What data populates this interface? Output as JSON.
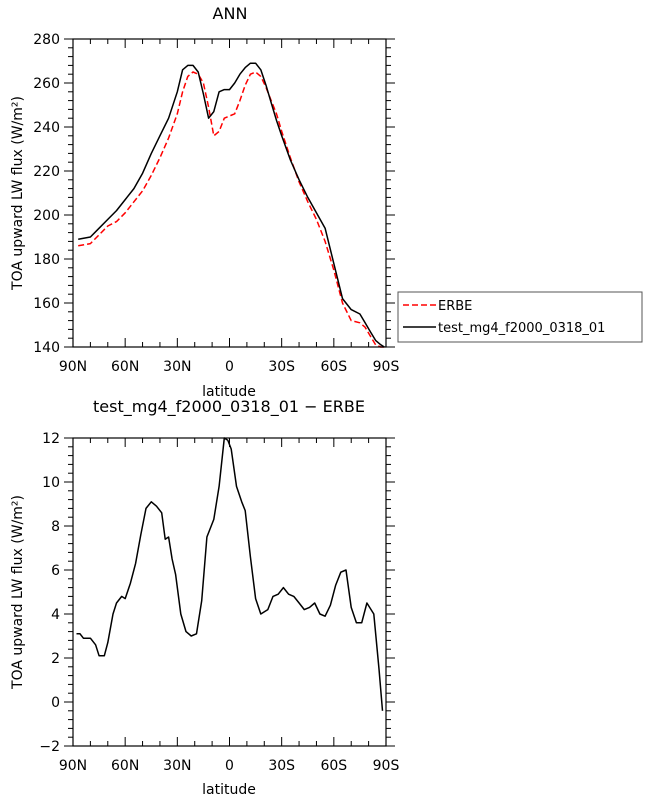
{
  "chart_data": [
    {
      "type": "line",
      "title": "ANN",
      "xlabel": "latitude",
      "ylabel": "TOA upward LW flux (W/m²)",
      "xlim": [
        90,
        -90
      ],
      "ylim": [
        140,
        280
      ],
      "x_ticks": [
        90,
        60,
        30,
        0,
        -30,
        -60,
        -90
      ],
      "x_tick_labels": [
        "90N",
        "60N",
        "30N",
        "0",
        "30S",
        "60S",
        "90S"
      ],
      "y_ticks": [
        140,
        160,
        180,
        200,
        220,
        240,
        260,
        280
      ],
      "y_tick_labels": [
        "140",
        "160",
        "180",
        "200",
        "220",
        "240",
        "260",
        "280"
      ],
      "legend": {
        "placement": "outside-right",
        "entries": [
          "ERBE",
          "test_mg4_f2000_0318_01"
        ]
      },
      "series": [
        {
          "name": "ERBE",
          "color": "#ff0000",
          "style": "dashed",
          "x": [
            87,
            80,
            75,
            70,
            65,
            60,
            55,
            50,
            45,
            40,
            35,
            30,
            27,
            24,
            21,
            18,
            15,
            12,
            9,
            6,
            3,
            0,
            -3,
            -6,
            -9,
            -12,
            -15,
            -18,
            -21,
            -24,
            -27,
            -30,
            -35,
            -40,
            -45,
            -50,
            -55,
            -60,
            -65,
            -70,
            -75,
            -78,
            -81,
            -84,
            -87,
            -89
          ],
          "y": [
            186,
            187,
            191,
            195,
            197,
            201,
            206,
            211,
            218,
            226,
            235,
            246,
            256,
            263,
            265,
            264,
            260,
            249,
            236,
            238,
            244,
            245,
            246,
            252,
            259,
            264,
            265,
            263,
            258,
            252,
            246,
            238,
            226,
            215,
            206,
            198,
            188,
            175,
            160,
            152,
            151,
            149,
            145,
            141,
            140,
            140
          ]
        },
        {
          "name": "test_mg4_f2000_0318_01",
          "color": "#000000",
          "style": "solid",
          "x": [
            87,
            80,
            75,
            70,
            65,
            60,
            55,
            50,
            45,
            40,
            35,
            30,
            27,
            24,
            21,
            18,
            15,
            12,
            9,
            6,
            3,
            0,
            -3,
            -6,
            -9,
            -12,
            -15,
            -18,
            -21,
            -24,
            -27,
            -30,
            -35,
            -40,
            -45,
            -50,
            -55,
            -60,
            -65,
            -70,
            -75,
            -78,
            -81,
            -84,
            -87,
            -89
          ],
          "y": [
            189,
            190,
            194,
            198,
            202,
            207,
            212,
            219,
            228,
            236,
            244,
            256,
            266,
            268,
            268,
            265,
            255,
            244,
            247,
            256,
            257,
            257,
            260,
            264,
            267,
            269,
            269,
            266,
            259,
            251,
            243,
            236,
            225,
            216,
            208,
            201,
            194,
            178,
            162,
            157,
            155,
            151,
            147,
            143,
            141,
            140
          ]
        }
      ]
    },
    {
      "type": "line",
      "title": "test_mg4_f2000_0318_01 − ERBE",
      "xlabel": "latitude",
      "ylabel": "TOA upward LW flux (W/m²)",
      "xlim": [
        90,
        -90
      ],
      "ylim": [
        -2,
        12
      ],
      "x_ticks": [
        90,
        60,
        30,
        0,
        -30,
        -60,
        -90
      ],
      "x_tick_labels": [
        "90N",
        "60N",
        "30N",
        "0",
        "30S",
        "60S",
        "90S"
      ],
      "y_ticks": [
        -2,
        0,
        2,
        4,
        6,
        8,
        10,
        12
      ],
      "y_tick_labels": [
        "−2",
        "0",
        "2",
        "4",
        "6",
        "8",
        "10",
        "12"
      ],
      "series": [
        {
          "color": "#000000",
          "style": "solid",
          "x": [
            88,
            86,
            84,
            80,
            77,
            75,
            72,
            70,
            67,
            65,
            62,
            60,
            57,
            54,
            51,
            48,
            45,
            42,
            39,
            37,
            35,
            33,
            31,
            28,
            25,
            22,
            19,
            16,
            13,
            9,
            6,
            3,
            1,
            -1,
            -4,
            -7,
            -9,
            -12,
            -15,
            -18,
            -22,
            -25,
            -28,
            -31,
            -34,
            -37,
            -40,
            -43,
            -46,
            -49,
            -52,
            -55,
            -58,
            -61,
            -64,
            -67,
            -70,
            -73,
            -76,
            -79,
            -83,
            -86,
            -88
          ],
          "y": [
            3.1,
            3.1,
            2.9,
            2.9,
            2.6,
            2.1,
            2.1,
            2.7,
            4.0,
            4.5,
            4.8,
            4.7,
            5.4,
            6.3,
            7.6,
            8.8,
            9.1,
            8.9,
            8.6,
            7.4,
            7.5,
            6.5,
            5.8,
            4.0,
            3.2,
            3.0,
            3.1,
            4.6,
            7.5,
            8.3,
            9.8,
            12.0,
            11.9,
            11.5,
            9.8,
            9.1,
            8.7,
            6.6,
            4.7,
            4.0,
            4.2,
            4.8,
            4.9,
            5.2,
            4.9,
            4.8,
            4.5,
            4.2,
            4.3,
            4.5,
            4.0,
            3.9,
            4.4,
            5.3,
            5.9,
            6.0,
            4.3,
            3.6,
            3.6,
            4.5,
            4.0,
            1.5,
            -0.4
          ]
        }
      ]
    }
  ]
}
